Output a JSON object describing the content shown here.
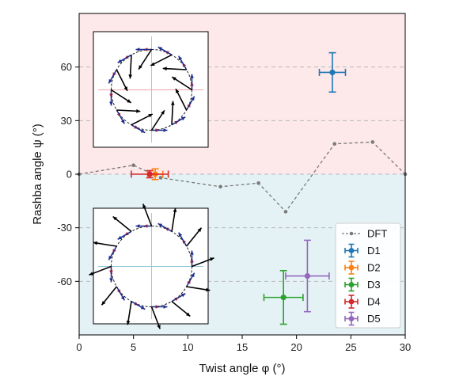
{
  "chart_data": {
    "type": "scatter",
    "xlabel": "Twist angle φ (°)",
    "ylabel": "Rashba angle ψ (°)",
    "xlim": [
      0,
      30
    ],
    "ylim": [
      -90,
      90
    ],
    "x_ticks": [
      0,
      5,
      10,
      15,
      20,
      25,
      30
    ],
    "x_tick_labels": [
      "0",
      "5",
      "10",
      "15",
      "20",
      "25",
      "30"
    ],
    "y_ticks": [
      -60,
      -30,
      0,
      30,
      60
    ],
    "y_tick_labels": [
      "-60",
      "-30",
      "0",
      "30",
      "60"
    ],
    "grid": "dashed horizontal lines at y ticks",
    "background": {
      "positive_region_color": "#fde8ea",
      "negative_region_color": "#e4f2f6"
    },
    "legend_position": "lower-right",
    "series": [
      {
        "name": "DFT",
        "kind": "dashed-line-markers",
        "color": "#7a7a7a",
        "x": [
          0,
          5,
          7.5,
          13,
          16.5,
          19,
          23.5,
          27,
          30
        ],
        "y": [
          0,
          5,
          -2,
          -7,
          -5,
          -21,
          17,
          18,
          0
        ]
      },
      {
        "name": "D1",
        "color": "#1f77b4",
        "x": [
          23.3
        ],
        "y": [
          57
        ],
        "xerr": [
          1.2
        ],
        "yerr": [
          11
        ]
      },
      {
        "name": "D2",
        "color": "#ff7f0e",
        "x": [
          7
        ],
        "y": [
          0
        ],
        "xerr": [
          0.7
        ],
        "yerr": [
          3
        ]
      },
      {
        "name": "D3",
        "color": "#2ca02c",
        "x": [
          18.8
        ],
        "y": [
          -69
        ],
        "xerr": [
          1.8
        ],
        "yerr": [
          15
        ]
      },
      {
        "name": "D4",
        "color": "#d62728",
        "x": [
          6.5
        ],
        "y": [
          0
        ],
        "xerr": [
          1.7
        ],
        "yerr": [
          2
        ]
      },
      {
        "name": "D5",
        "color": "#9467bd",
        "x": [
          21
        ],
        "y": [
          -57
        ],
        "xerr": [
          2
        ],
        "yerr": [
          20
        ]
      }
    ],
    "insets": [
      {
        "position": "top-left",
        "spin_angle_deg": 57
      },
      {
        "position": "bottom-left",
        "spin_angle_deg": -69
      }
    ]
  }
}
